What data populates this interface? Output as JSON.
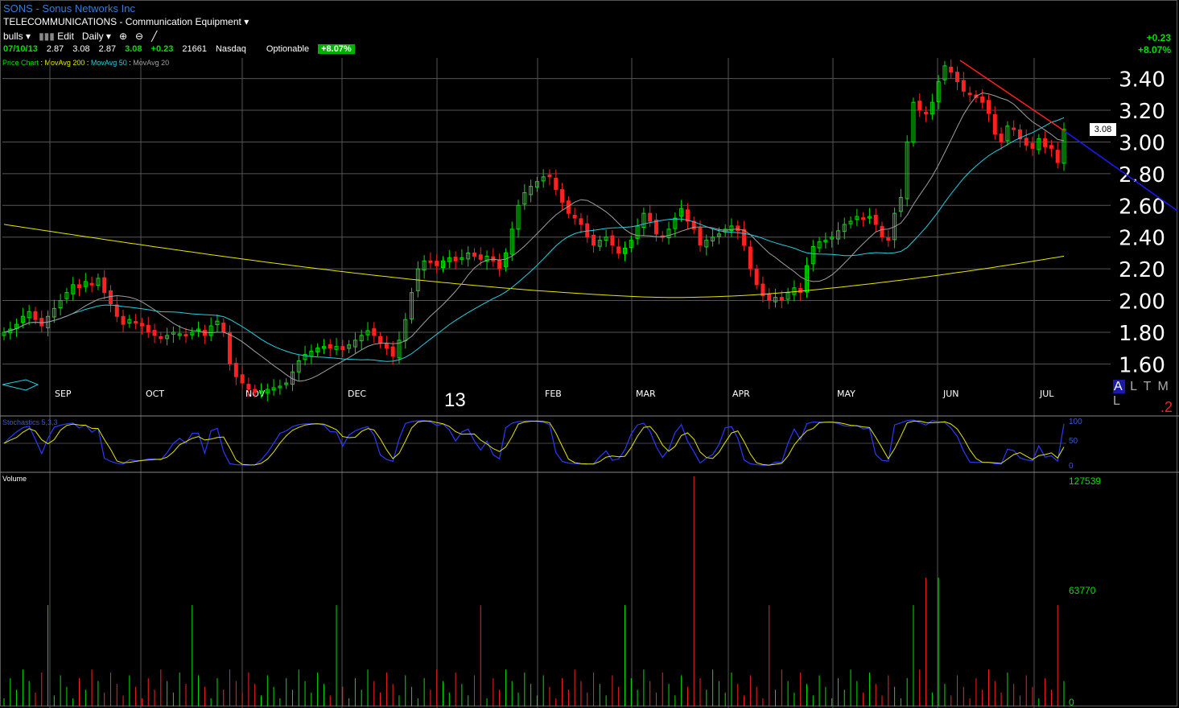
{
  "header": {
    "title": "SONS - Sonus Networks Inc",
    "industry": "TELECOMMUNICATIONS - Communication Equipment",
    "list_name": "bulls",
    "edit_label": "Edit",
    "period": "Daily",
    "date": "07/10/13",
    "open": "2.87",
    "high": "3.08",
    "low": "2.87",
    "close": "3.08",
    "change": "+0.23",
    "volume": "21661",
    "exchange": "Nasdaq",
    "optionable": "Optionable",
    "change_pct": "+8.07%"
  },
  "right_change": {
    "change": "+0.23",
    "pct": "+8.07%"
  },
  "legend": {
    "price_chart": "Price Chart",
    "ma200": "MovAvg 200",
    "ma50": "MovAvg 50",
    "ma20": "MovAvg 20"
  },
  "mode": {
    "selected": "A",
    "others": "L T M L"
  },
  "corner_number": ".2",
  "year_label": "13",
  "current_price_tag": "3.08",
  "stochastics_label": "Stochastics 5,3,3",
  "volume_label": "Volume",
  "stoch_axis": [
    "100",
    "50",
    "0"
  ],
  "volume_axis": [
    "127539",
    "63770",
    "0"
  ],
  "colors": {
    "up": "#00e000",
    "down": "#ff2020",
    "ma200": "#e6e600",
    "ma50": "#25d0e0",
    "ma20": "#a0a0a0",
    "trend": "#ff2020",
    "trend_ext": "#1a1aff"
  },
  "chart_data": {
    "type": "candlestick",
    "y_ticks": [
      "3.40",
      "3.20",
      "3.00",
      "2.80",
      "2.60",
      "2.40",
      "2.20",
      "2.00",
      "1.80",
      "1.60"
    ],
    "ylim": [
      1.47,
      3.53
    ],
    "x_months": [
      "SEP",
      "OCT",
      "NOV",
      "DEC",
      "13",
      "FEB",
      "MAR",
      "APR",
      "MAY",
      "JUN",
      "JUL"
    ],
    "closes": [
      1.8,
      1.82,
      1.85,
      1.9,
      1.93,
      1.88,
      1.84,
      1.9,
      1.95,
      2.0,
      2.05,
      2.1,
      2.08,
      2.12,
      2.1,
      2.14,
      2.05,
      1.98,
      1.9,
      1.85,
      1.88,
      1.86,
      1.84,
      1.8,
      1.78,
      1.76,
      1.78,
      1.8,
      1.79,
      1.78,
      1.8,
      1.82,
      1.78,
      1.84,
      1.87,
      1.8,
      1.6,
      1.52,
      1.48,
      1.44,
      1.42,
      1.43,
      1.44,
      1.45,
      1.46,
      1.48,
      1.55,
      1.62,
      1.66,
      1.68,
      1.7,
      1.71,
      1.7,
      1.71,
      1.69,
      1.72,
      1.75,
      1.78,
      1.81,
      1.78,
      1.73,
      1.7,
      1.65,
      1.75,
      1.88,
      2.05,
      2.2,
      2.25,
      2.24,
      2.22,
      2.25,
      2.27,
      2.25,
      2.27,
      2.3,
      2.28,
      2.26,
      2.28,
      2.25,
      2.2,
      2.3,
      2.45,
      2.6,
      2.68,
      2.72,
      2.75,
      2.78,
      2.78,
      2.7,
      2.62,
      2.55,
      2.52,
      2.48,
      2.4,
      2.35,
      2.38,
      2.4,
      2.35,
      2.3,
      2.33,
      2.38,
      2.47,
      2.55,
      2.5,
      2.42,
      2.4,
      2.45,
      2.52,
      2.58,
      2.5,
      2.45,
      2.35,
      2.38,
      2.4,
      2.42,
      2.45,
      2.47,
      2.44,
      2.35,
      2.2,
      2.1,
      2.03,
      2.0,
      2.02,
      2.0,
      2.05,
      2.08,
      2.05,
      2.22,
      2.34,
      2.37,
      2.38,
      2.4,
      2.44,
      2.48,
      2.5,
      2.53,
      2.52,
      2.53,
      2.48,
      2.4,
      2.38,
      2.55,
      2.65,
      3.0,
      3.25,
      3.2,
      3.18,
      3.25,
      3.38,
      3.48,
      3.44,
      3.38,
      3.32,
      3.3,
      3.28,
      3.25,
      3.18,
      3.05,
      3.0,
      3.1,
      3.08,
      3.02,
      2.98,
      2.96,
      3.02,
      2.97,
      2.96,
      2.87,
      3.08
    ],
    "ma200_range": [
      2.48,
      2.0,
      2.28
    ],
    "stochastic_range": [
      0,
      100
    ],
    "volume_max": 127539
  }
}
